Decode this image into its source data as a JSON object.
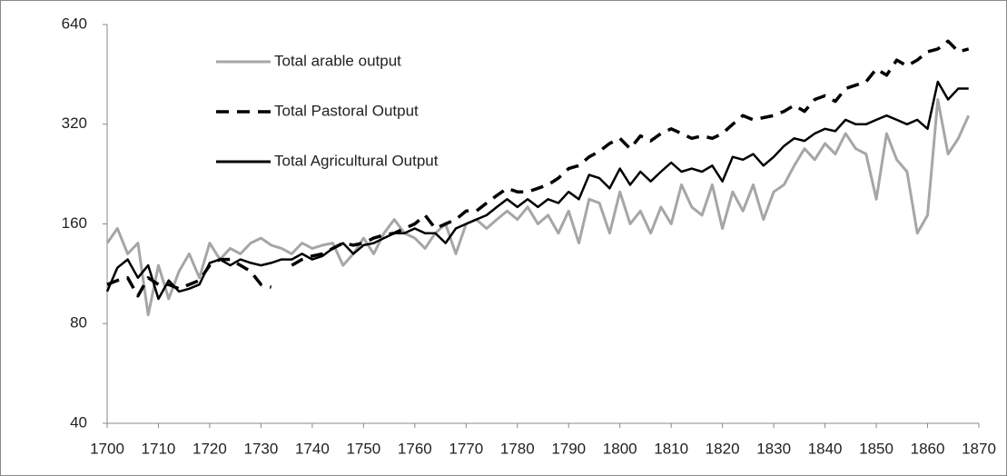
{
  "chart_data": {
    "type": "line",
    "log_y": true,
    "ylim": [
      40,
      640
    ],
    "yticks": [
      40,
      80,
      160,
      320,
      640
    ],
    "xlim": [
      1700,
      1870
    ],
    "xticks": [
      1700,
      1710,
      1720,
      1730,
      1740,
      1750,
      1760,
      1770,
      1780,
      1790,
      1800,
      1810,
      1820,
      1830,
      1840,
      1850,
      1860,
      1870
    ],
    "x": [
      1700,
      1702,
      1704,
      1706,
      1708,
      1710,
      1712,
      1714,
      1716,
      1718,
      1720,
      1722,
      1724,
      1726,
      1728,
      1730,
      1732,
      1734,
      1736,
      1738,
      1740,
      1742,
      1744,
      1746,
      1748,
      1750,
      1752,
      1754,
      1756,
      1758,
      1760,
      1762,
      1764,
      1766,
      1768,
      1770,
      1772,
      1774,
      1776,
      1778,
      1780,
      1782,
      1784,
      1786,
      1788,
      1790,
      1792,
      1794,
      1796,
      1798,
      1800,
      1802,
      1804,
      1806,
      1808,
      1810,
      1812,
      1814,
      1816,
      1818,
      1820,
      1822,
      1824,
      1826,
      1828,
      1830,
      1832,
      1834,
      1836,
      1838,
      1840,
      1842,
      1844,
      1846,
      1848,
      1850,
      1852,
      1854,
      1856,
      1858,
      1860,
      1862,
      1864,
      1866,
      1868
    ],
    "series": [
      {
        "name": "Total arable output",
        "color": "#a6a6a6",
        "dashed": false,
        "values": [
          140,
          155,
          130,
          140,
          85,
          120,
          95,
          115,
          130,
          110,
          140,
          125,
          135,
          130,
          140,
          145,
          138,
          135,
          130,
          140,
          135,
          138,
          140,
          120,
          130,
          145,
          130,
          150,
          165,
          150,
          145,
          135,
          150,
          160,
          130,
          160,
          165,
          155,
          165,
          175,
          165,
          180,
          160,
          170,
          150,
          175,
          140,
          190,
          185,
          150,
          200,
          160,
          175,
          150,
          180,
          160,
          210,
          180,
          170,
          210,
          155,
          200,
          175,
          210,
          165,
          200,
          210,
          240,
          270,
          250,
          280,
          260,
          300,
          270,
          260,
          190,
          300,
          250,
          230,
          150,
          170,
          380,
          260,
          290,
          340
        ]
      },
      {
        "name": "Total Pastoral Output",
        "color": "#000000",
        "dashed": true,
        "values": [
          105,
          108,
          110,
          97,
          110,
          105,
          105,
          102,
          105,
          108,
          120,
          125,
          125,
          120,
          115,
          105,
          103,
          null,
          120,
          125,
          128,
          130,
          135,
          140,
          138,
          140,
          145,
          148,
          150,
          155,
          160,
          170,
          155,
          160,
          165,
          175,
          175,
          185,
          195,
          205,
          200,
          200,
          205,
          210,
          220,
          235,
          240,
          255,
          265,
          280,
          290,
          270,
          295,
          285,
          300,
          310,
          300,
          290,
          295,
          290,
          300,
          320,
          340,
          330,
          335,
          340,
          350,
          365,
          350,
          380,
          390,
          375,
          410,
          420,
          430,
          470,
          450,
          500,
          480,
          500,
          530,
          540,
          570,
          530,
          540
        ]
      },
      {
        "name": "Total Agricultural Output",
        "color": "#000000",
        "dashed": false,
        "values": [
          100,
          118,
          125,
          110,
          120,
          95,
          108,
          100,
          102,
          105,
          122,
          125,
          120,
          125,
          122,
          120,
          122,
          125,
          125,
          130,
          125,
          128,
          135,
          140,
          130,
          138,
          140,
          145,
          150,
          150,
          155,
          150,
          150,
          140,
          155,
          160,
          165,
          170,
          180,
          190,
          180,
          190,
          180,
          190,
          185,
          200,
          190,
          225,
          220,
          205,
          235,
          210,
          230,
          215,
          230,
          245,
          230,
          235,
          230,
          240,
          215,
          255,
          250,
          260,
          240,
          255,
          275,
          290,
          285,
          300,
          310,
          305,
          330,
          320,
          320,
          330,
          340,
          330,
          320,
          330,
          310,
          430,
          380,
          410,
          410
        ]
      }
    ]
  }
}
